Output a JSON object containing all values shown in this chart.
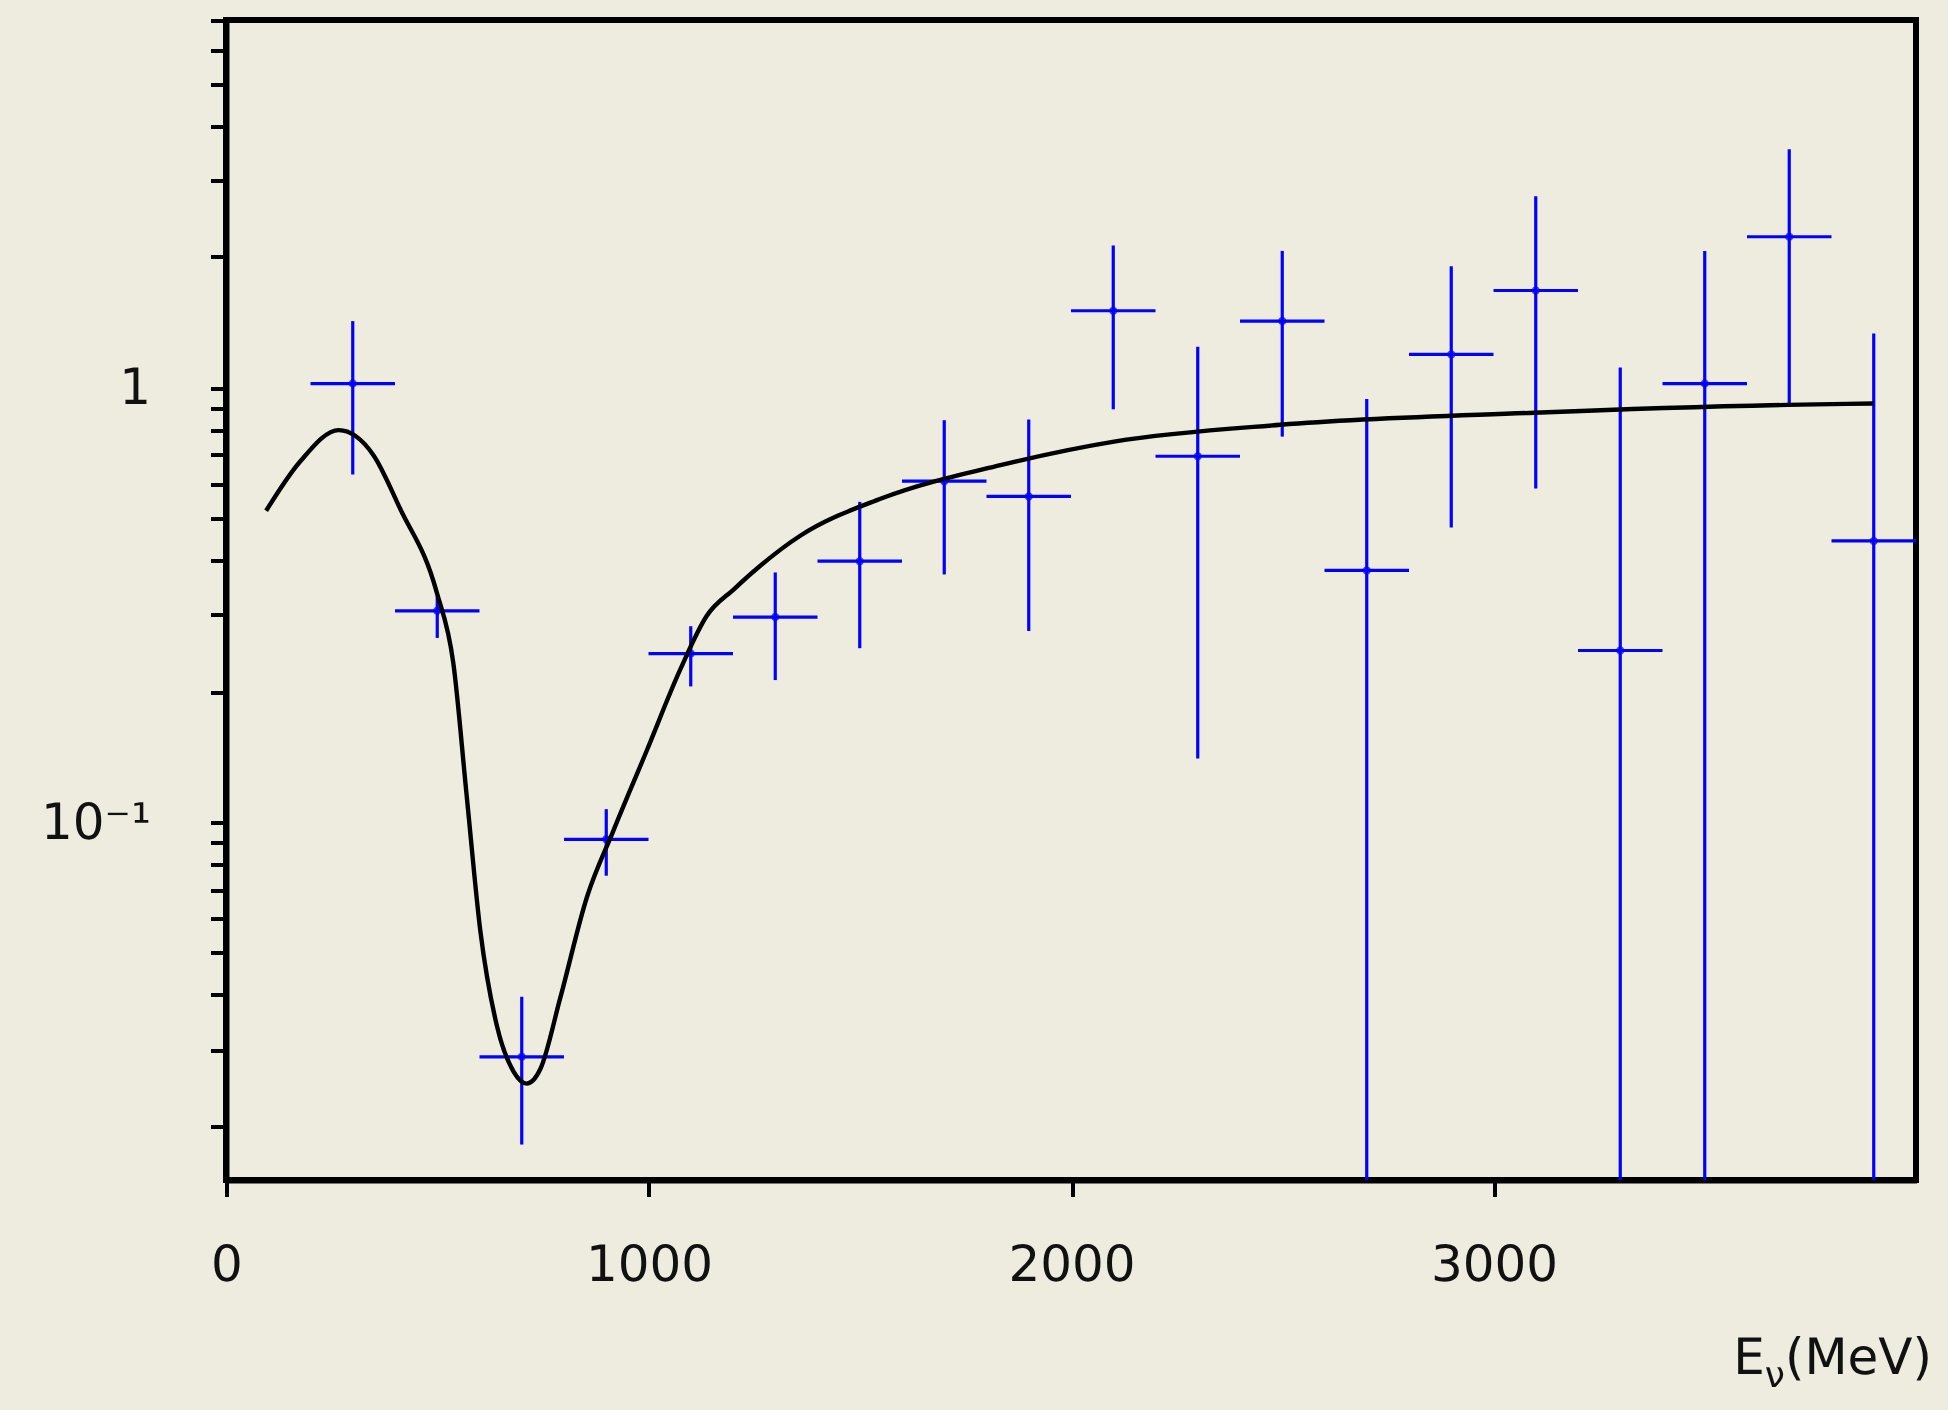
{
  "chart_data": {
    "type": "scatter",
    "xlabel": "E$_{ν}$(MeV)",
    "xlim": [
      0,
      4000
    ],
    "xticks": [
      0,
      1000,
      2000,
      3000
    ],
    "ylim": [
      0.015,
      7
    ],
    "log": true,
    "grid": false,
    "yticks": [
      {
        "value": 0.02,
        "label": null
      },
      {
        "value": 0.03,
        "label": null
      },
      {
        "value": 0.04,
        "label": null
      },
      {
        "value": 0.05,
        "label": null
      },
      {
        "value": 0.06,
        "label": null
      },
      {
        "value": 0.07,
        "label": null
      },
      {
        "value": 0.08,
        "label": null
      },
      {
        "value": 0.09,
        "label": null
      },
      {
        "value": 0.1,
        "label": "10⁻¹"
      },
      {
        "value": 0.2,
        "label": null
      },
      {
        "value": 0.3,
        "label": null
      },
      {
        "value": 0.4,
        "label": null
      },
      {
        "value": 0.5,
        "label": null
      },
      {
        "value": 0.6,
        "label": null
      },
      {
        "value": 0.7,
        "label": null
      },
      {
        "value": 0.8,
        "label": null
      },
      {
        "value": 0.9,
        "label": null
      },
      {
        "value": 1,
        "label": "1"
      },
      {
        "value": 2,
        "label": null
      },
      {
        "value": 3,
        "label": null
      },
      {
        "value": 4,
        "label": null
      },
      {
        "value": 5,
        "label": null
      },
      {
        "value": 6,
        "label": null
      },
      {
        "value": 7,
        "label": null
      }
    ],
    "series": [
      {
        "color": "#0000ff",
        "x": [
          300,
          500,
          700,
          900,
          1100,
          1300,
          1500,
          1700,
          1900,
          2100,
          2300,
          2500,
          2700,
          2900,
          3100,
          3300,
          3500,
          3700,
          3900
        ],
        "values": [
          1.02,
          0.306,
          0.0288,
          0.0912,
          0.244,
          0.296,
          0.398,
          0.608,
          0.561,
          1.5,
          0.694,
          1.42,
          0.379,
          1.19,
          1.67,
          0.248,
          1.02,
          2.22,
          0.443
        ],
        "errors": [
          [
            0.63,
            1.42
          ],
          [
            0.265,
            0.33
          ],
          [
            0.0181,
            0.0396
          ],
          [
            0.0752,
            0.107
          ],
          [
            0.205,
            0.282
          ],
          [
            0.212,
            0.375
          ],
          [
            0.251,
            0.545
          ],
          [
            0.371,
            0.84
          ],
          [
            0.275,
            0.843
          ],
          [
            0.89,
            2.12
          ],
          [
            0.14,
            1.24
          ],
          [
            0.77,
            2.06
          ],
          [
            0.015,
            0.94
          ],
          [
            0.476,
            1.9
          ],
          [
            0.585,
            2.75
          ],
          [
            0.015,
            1.11
          ],
          [
            0.015,
            2.06
          ],
          [
            0.91,
            3.53
          ],
          [
            0.015,
            1.33
          ]
        ],
        "xerrors": [
          100,
          100,
          100,
          100,
          100,
          100,
          100,
          100,
          100,
          100,
          100,
          100,
          100,
          100,
          100,
          100,
          100,
          100,
          100
        ]
      },
      {
        "type": "line",
        "color": "#000000",
        "x": [
          95,
          175,
          267,
          349,
          412,
          499,
          538,
          570,
          602,
          641,
          681,
          712,
          744,
          791,
          854,
          917,
          996,
          1075,
          1138,
          1202,
          1360,
          1549,
          1833,
          2102,
          2496,
          3096,
          3696,
          3899
        ],
        "values": [
          0.52,
          0.674,
          0.797,
          0.698,
          0.526,
          0.337,
          0.232,
          0.114,
          0.0561,
          0.034,
          0.0266,
          0.025,
          0.027,
          0.0393,
          0.067,
          0.0955,
          0.146,
          0.224,
          0.298,
          0.343,
          0.456,
          0.554,
          0.662,
          0.75,
          0.82,
          0.874,
          0.911,
          0.918
        ]
      }
    ]
  }
}
